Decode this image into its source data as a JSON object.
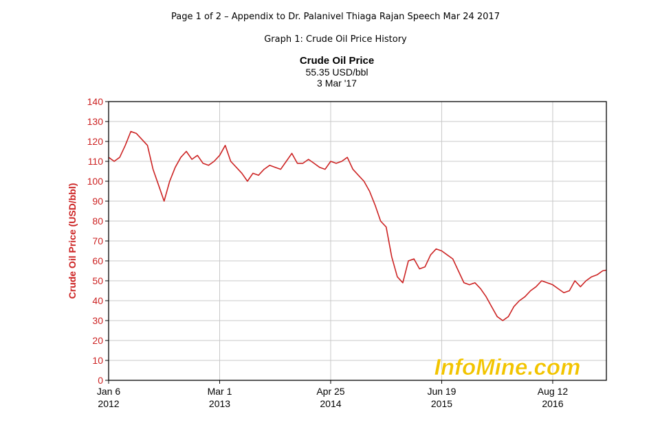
{
  "page": {
    "header": "Page 1 of 2 – Appendix to Dr. Palanivel Thiaga Rajan Speech Mar 24 2017",
    "graph_title": "Graph 1: Crude Oil Price History"
  },
  "chart_data": {
    "type": "line",
    "title": "Crude Oil Price",
    "subtitle": "55.35 USD/bbl",
    "date_label": "3 Mar '17",
    "xlabel": "",
    "ylabel": "Crude Oil Price (USD/bbl)",
    "ylim": [
      0,
      140
    ],
    "y_ticks": [
      0,
      10,
      20,
      30,
      40,
      50,
      60,
      70,
      80,
      90,
      100,
      110,
      120,
      130,
      140
    ],
    "x_range": [
      "2012-01-06",
      "2017-03-03"
    ],
    "x_ticks": [
      {
        "date": "2012-01-06",
        "line1": "Jan 6",
        "line2": "2012"
      },
      {
        "date": "2013-03-01",
        "line1": "Mar 1",
        "line2": "2013"
      },
      {
        "date": "2014-04-25",
        "line1": "Apr 25",
        "line2": "2014"
      },
      {
        "date": "2015-06-19",
        "line1": "Jun 19",
        "line2": "2015"
      },
      {
        "date": "2016-08-12",
        "line1": "Aug 12",
        "line2": "2016"
      }
    ],
    "grid": true,
    "watermark": "InfoMine.com",
    "colors": {
      "line": "#cc2222",
      "axis_label": "#cc2222",
      "grid": "#c8c8c8",
      "watermark": "#f2c400"
    },
    "series": [
      {
        "x": [
          "2012-01-06",
          "2012-01-27",
          "2012-02-17",
          "2012-03-09",
          "2012-03-30",
          "2012-04-20",
          "2012-05-11",
          "2012-06-01",
          "2012-06-22",
          "2012-07-13",
          "2012-08-03",
          "2012-08-24",
          "2012-09-14",
          "2012-10-05",
          "2012-10-26",
          "2012-11-16",
          "2012-12-07",
          "2012-12-28",
          "2013-01-18",
          "2013-02-08",
          "2013-03-01",
          "2013-03-22",
          "2013-04-12",
          "2013-05-03",
          "2013-05-24",
          "2013-06-14",
          "2013-07-05",
          "2013-07-26",
          "2013-08-16",
          "2013-09-06",
          "2013-09-27",
          "2013-10-18",
          "2013-11-08",
          "2013-11-29",
          "2013-12-20",
          "2014-01-10",
          "2014-01-31",
          "2014-02-21",
          "2014-03-14",
          "2014-04-04",
          "2014-04-25",
          "2014-05-16",
          "2014-06-06",
          "2014-06-27",
          "2014-07-18",
          "2014-08-08",
          "2014-08-29",
          "2014-09-19",
          "2014-10-10",
          "2014-10-31",
          "2014-11-21",
          "2014-12-12",
          "2015-01-02",
          "2015-01-23",
          "2015-02-13",
          "2015-03-06",
          "2015-03-27",
          "2015-04-17",
          "2015-05-08",
          "2015-05-29",
          "2015-06-19",
          "2015-07-10",
          "2015-07-31",
          "2015-08-21",
          "2015-09-11",
          "2015-10-02",
          "2015-10-23",
          "2015-11-13",
          "2015-12-04",
          "2015-12-25",
          "2016-01-15",
          "2016-02-05",
          "2016-02-26",
          "2016-03-18",
          "2016-04-08",
          "2016-04-29",
          "2016-05-20",
          "2016-06-10",
          "2016-07-01",
          "2016-07-22",
          "2016-08-12",
          "2016-09-02",
          "2016-09-23",
          "2016-10-14",
          "2016-11-04",
          "2016-11-25",
          "2016-12-16",
          "2017-01-06",
          "2017-01-27",
          "2017-02-17",
          "2017-03-03"
        ],
        "y": [
          112,
          110,
          112,
          118,
          125,
          124,
          121,
          118,
          106,
          98,
          90,
          100,
          107,
          112,
          115,
          111,
          113,
          109,
          108,
          110,
          113,
          118,
          110,
          107,
          104,
          100,
          104,
          103,
          106,
          108,
          107,
          106,
          110,
          114,
          109,
          109,
          111,
          109,
          107,
          106,
          110,
          109,
          110,
          112,
          106,
          103,
          100,
          95,
          88,
          80,
          77,
          62,
          52,
          49,
          60,
          61,
          56,
          57,
          63,
          66,
          65,
          63,
          61,
          55,
          49,
          48,
          49,
          46,
          42,
          37,
          32,
          30,
          32,
          37,
          40,
          42,
          45,
          47,
          50,
          49,
          48,
          46,
          44,
          45,
          50,
          47,
          50,
          52,
          53,
          55,
          55.35
        ]
      }
    ]
  }
}
